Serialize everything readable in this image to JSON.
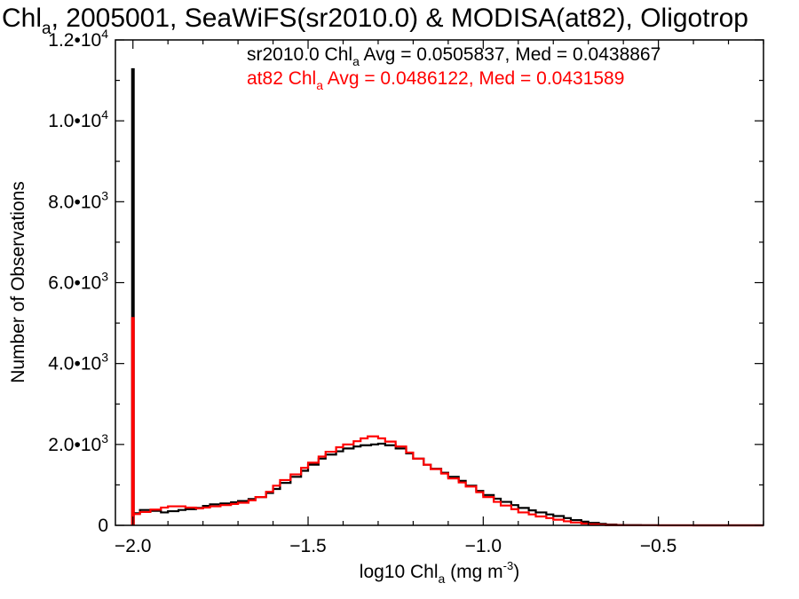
{
  "chart_data": {
    "type": "line",
    "title": "Chl",
    "title_sub": "a",
    "title_rest": ", 2005001, SeaWiFS(sr2010.0) & MODISA(at82), Oligotrop",
    "xlabel": "log10 Chl",
    "xlabel_sub": "a",
    "xlabel_rest": " (mg m",
    "xlabel_sup": "-3",
    "xlabel_close": ")",
    "ylabel": "Number of Observations",
    "xlim": [
      -2.05,
      -0.2
    ],
    "ylim": [
      0,
      12000
    ],
    "x_ticks": [
      {
        "value": -2.0,
        "label": "−2.0"
      },
      {
        "value": -1.5,
        "label": "−1.5"
      },
      {
        "value": -1.0,
        "label": "−1.0"
      },
      {
        "value": -0.5,
        "label": "−0.5"
      }
    ],
    "y_ticks": [
      {
        "value": 0,
        "mant": "0",
        "exp": ""
      },
      {
        "value": 2000,
        "mant": "2.0•10",
        "exp": "3"
      },
      {
        "value": 4000,
        "mant": "4.0•10",
        "exp": "3"
      },
      {
        "value": 6000,
        "mant": "6.0•10",
        "exp": "3"
      },
      {
        "value": 8000,
        "mant": "8.0•10",
        "exp": "3"
      },
      {
        "value": 10000,
        "mant": "1.0•10",
        "exp": "4"
      },
      {
        "value": 12000,
        "mant": "1.2•10",
        "exp": "4"
      }
    ],
    "series": [
      {
        "name": "sr2010.0",
        "color": "#000000",
        "stats": {
          "pre": "sr2010.0 Chl",
          "sub": "a",
          "post": " Avg = 0.0505837, Med = 0.0438867"
        },
        "spike": 11300,
        "points": [
          [
            -2.0,
            300
          ],
          [
            -1.98,
            380
          ],
          [
            -1.95,
            360
          ],
          [
            -1.92,
            320
          ],
          [
            -1.9,
            350
          ],
          [
            -1.87,
            380
          ],
          [
            -1.85,
            400
          ],
          [
            -1.82,
            430
          ],
          [
            -1.8,
            480
          ],
          [
            -1.78,
            520
          ],
          [
            -1.75,
            540
          ],
          [
            -1.72,
            570
          ],
          [
            -1.7,
            600
          ],
          [
            -1.67,
            650
          ],
          [
            -1.65,
            700
          ],
          [
            -1.62,
            800
          ],
          [
            -1.6,
            900
          ],
          [
            -1.58,
            1050
          ],
          [
            -1.55,
            1200
          ],
          [
            -1.52,
            1350
          ],
          [
            -1.5,
            1500
          ],
          [
            -1.47,
            1650
          ],
          [
            -1.45,
            1750
          ],
          [
            -1.42,
            1830
          ],
          [
            -1.4,
            1900
          ],
          [
            -1.37,
            1950
          ],
          [
            -1.35,
            1980
          ],
          [
            -1.32,
            2000
          ],
          [
            -1.3,
            2020
          ],
          [
            -1.28,
            1980
          ],
          [
            -1.25,
            1900
          ],
          [
            -1.22,
            1780
          ],
          [
            -1.2,
            1650
          ],
          [
            -1.17,
            1500
          ],
          [
            -1.15,
            1400
          ],
          [
            -1.12,
            1300
          ],
          [
            -1.1,
            1200
          ],
          [
            -1.07,
            1100
          ],
          [
            -1.05,
            980
          ],
          [
            -1.02,
            850
          ],
          [
            -1.0,
            750
          ],
          [
            -0.97,
            660
          ],
          [
            -0.95,
            580
          ],
          [
            -0.92,
            500
          ],
          [
            -0.9,
            430
          ],
          [
            -0.87,
            370
          ],
          [
            -0.85,
            320
          ],
          [
            -0.82,
            270
          ],
          [
            -0.8,
            230
          ],
          [
            -0.77,
            180
          ],
          [
            -0.75,
            130
          ],
          [
            -0.72,
            90
          ],
          [
            -0.7,
            60
          ],
          [
            -0.67,
            35
          ],
          [
            -0.65,
            20
          ],
          [
            -0.62,
            10
          ],
          [
            -0.6,
            5
          ],
          [
            -0.55,
            2
          ],
          [
            -0.5,
            1
          ],
          [
            -0.4,
            0
          ],
          [
            -0.2,
            0
          ]
        ]
      },
      {
        "name": "at82",
        "color": "#ff0000",
        "stats": {
          "pre": "at82 Chl",
          "sub": "a",
          "post": " Avg = 0.0486122, Med = 0.0431589"
        },
        "spike": 5150,
        "points": [
          [
            -2.0,
            280
          ],
          [
            -1.98,
            330
          ],
          [
            -1.95,
            390
          ],
          [
            -1.92,
            440
          ],
          [
            -1.9,
            470
          ],
          [
            -1.88,
            470
          ],
          [
            -1.85,
            440
          ],
          [
            -1.82,
            420
          ],
          [
            -1.8,
            440
          ],
          [
            -1.78,
            470
          ],
          [
            -1.75,
            500
          ],
          [
            -1.72,
            530
          ],
          [
            -1.7,
            560
          ],
          [
            -1.67,
            620
          ],
          [
            -1.65,
            700
          ],
          [
            -1.62,
            830
          ],
          [
            -1.6,
            980
          ],
          [
            -1.58,
            1120
          ],
          [
            -1.55,
            1260
          ],
          [
            -1.52,
            1420
          ],
          [
            -1.5,
            1550
          ],
          [
            -1.47,
            1700
          ],
          [
            -1.45,
            1820
          ],
          [
            -1.42,
            1930
          ],
          [
            -1.4,
            2000
          ],
          [
            -1.37,
            2080
          ],
          [
            -1.35,
            2150
          ],
          [
            -1.33,
            2200
          ],
          [
            -1.3,
            2150
          ],
          [
            -1.28,
            2070
          ],
          [
            -1.25,
            1950
          ],
          [
            -1.22,
            1800
          ],
          [
            -1.2,
            1650
          ],
          [
            -1.17,
            1500
          ],
          [
            -1.15,
            1390
          ],
          [
            -1.12,
            1280
          ],
          [
            -1.1,
            1160
          ],
          [
            -1.07,
            1060
          ],
          [
            -1.05,
            960
          ],
          [
            -1.02,
            820
          ],
          [
            -1.0,
            700
          ],
          [
            -0.97,
            580
          ],
          [
            -0.95,
            490
          ],
          [
            -0.92,
            400
          ],
          [
            -0.9,
            320
          ],
          [
            -0.87,
            270
          ],
          [
            -0.85,
            220
          ],
          [
            -0.82,
            180
          ],
          [
            -0.8,
            140
          ],
          [
            -0.77,
            100
          ],
          [
            -0.75,
            70
          ],
          [
            -0.72,
            45
          ],
          [
            -0.7,
            25
          ],
          [
            -0.67,
            12
          ],
          [
            -0.65,
            6
          ],
          [
            -0.62,
            3
          ],
          [
            -0.6,
            1
          ],
          [
            -0.5,
            0
          ],
          [
            -0.2,
            0
          ]
        ]
      }
    ]
  }
}
